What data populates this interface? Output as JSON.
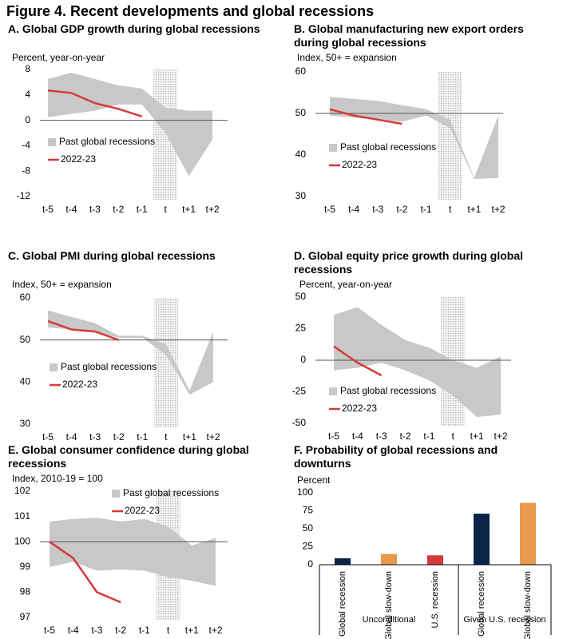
{
  "title": "Figure 4. Recent developments and global recessions",
  "chart_data": [
    {
      "type": "band-line",
      "title": "A. Global GDP growth during global recessions",
      "ylabel": "Percent, year-on-year",
      "categories": [
        "t-5",
        "t-4",
        "t-3",
        "t-2",
        "t-1",
        "t",
        "t+1",
        "t+2"
      ],
      "highlight": "t",
      "reference_line": 0,
      "ylim": [
        -12,
        8
      ],
      "yticks": [
        -12,
        -8,
        -4,
        0,
        4,
        8
      ],
      "series": [
        {
          "name": "Past global recessions",
          "color": "#c8c8c8",
          "upper": [
            6.5,
            7.5,
            6.5,
            5.5,
            5,
            2,
            1.5,
            1.5
          ],
          "lower": [
            0.5,
            1,
            1.5,
            2.5,
            2.5,
            -2,
            -8.8,
            -3
          ]
        },
        {
          "name": "2022-23",
          "color": "#d6393b",
          "values": [
            4.7,
            4.3,
            2.7,
            1.8,
            0.6,
            null,
            null,
            null
          ]
        }
      ]
    },
    {
      "type": "band-line",
      "title": "B. Global manufacturing new export orders during global recessions",
      "ylabel": "Index, 50+ = expansion",
      "categories": [
        "t-5",
        "t-4",
        "t-3",
        "t-2",
        "t-1",
        "t",
        "t+1",
        "t+2"
      ],
      "highlight": "t",
      "reference_line": 50,
      "ylim": [
        30,
        60
      ],
      "yticks": [
        30,
        40,
        50,
        60
      ],
      "series": [
        {
          "name": "Past global recessions",
          "color": "#c8c8c8",
          "upper": [
            54,
            53.5,
            53,
            52,
            51,
            48.5,
            34.5,
            49.5
          ],
          "lower": [
            49.5,
            49,
            48.5,
            48,
            49.5,
            46.5,
            34.2,
            34.5
          ]
        },
        {
          "name": "2022-23",
          "color": "#d6393b",
          "values": [
            51,
            49.5,
            48.5,
            47.5,
            null,
            null,
            null,
            null
          ]
        }
      ]
    },
    {
      "type": "band-line",
      "title": "C. Global PMI during global recessions",
      "ylabel": "Index, 50+ = expansion",
      "categories": [
        "t-5",
        "t-4",
        "t-3",
        "t-2",
        "t-1",
        "t",
        "t+1",
        "t+2"
      ],
      "highlight": "t",
      "reference_line": 50,
      "ylim": [
        30,
        60
      ],
      "yticks": [
        30,
        40,
        50,
        60
      ],
      "series": [
        {
          "name": "Past global recessions",
          "color": "#c8c8c8",
          "upper": [
            57,
            55.5,
            54,
            51,
            51,
            49,
            38,
            52
          ],
          "lower": [
            53,
            52.5,
            52,
            50.5,
            50.5,
            46.5,
            37,
            40
          ]
        },
        {
          "name": "2022-23",
          "color": "#d6393b",
          "values": [
            54.5,
            52.5,
            52,
            50,
            null,
            null,
            null,
            null
          ]
        }
      ]
    },
    {
      "type": "band-line",
      "title": "D. Global equity price growth during global recessions",
      "ylabel": "Percent, year-on-year",
      "categories": [
        "t-5",
        "t-4",
        "t-3",
        "t-2",
        "t-1",
        "t",
        "t+1",
        "t+2"
      ],
      "highlight": "t",
      "reference_line": 0,
      "ylim": [
        -50,
        50
      ],
      "yticks": [
        -50,
        -25,
        0,
        25,
        50
      ],
      "series": [
        {
          "name": "Past global recessions",
          "color": "#c8c8c8",
          "upper": [
            36,
            42,
            28,
            16,
            10,
            0,
            -6,
            3
          ],
          "lower": [
            -8,
            -6,
            -2,
            -8,
            -16,
            -28,
            -45,
            -43
          ]
        },
        {
          "name": "2022-23",
          "color": "#d6393b",
          "values": [
            11,
            -2,
            -12,
            null,
            null,
            null,
            null,
            null
          ]
        }
      ]
    },
    {
      "type": "band-line",
      "title": "E. Global consumer confidence during global recessions",
      "ylabel": "Index, 2010-19 = 100",
      "categories": [
        "t-5",
        "t-4",
        "t-3",
        "t-2",
        "t-1",
        "t",
        "t+1",
        "t+2"
      ],
      "highlight": "t",
      "reference_line": 100,
      "ylim": [
        97,
        102
      ],
      "yticks": [
        97,
        98,
        99,
        100,
        101,
        102
      ],
      "series": [
        {
          "name": "Past global recessions",
          "color": "#c8c8c8",
          "upper": [
            100.8,
            100.9,
            100.95,
            100.8,
            100.9,
            100.6,
            99.85,
            100.15
          ],
          "lower": [
            99,
            99.2,
            98.85,
            98.9,
            98.85,
            98.6,
            98.45,
            98.25
          ]
        },
        {
          "name": "2022-23",
          "color": "#d6393b",
          "values": [
            100,
            99.35,
            98,
            97.6,
            null,
            null,
            null,
            null
          ]
        }
      ]
    },
    {
      "type": "bar",
      "title": "F. Probability of global recessions and downturns",
      "ylabel": "Percent",
      "categories": [
        "Global recession",
        "Global slow-down",
        "U.S. recession",
        "Global recession",
        "Global slow-down"
      ],
      "values": [
        9,
        15,
        13,
        71,
        86
      ],
      "colors": [
        "#0b2346",
        "#e8994a",
        "#d6393b",
        "#0b2346",
        "#e8994a"
      ],
      "groups": [
        {
          "label": "Unconditional",
          "size": 3
        },
        {
          "label": "Given U.S. recession",
          "size": 2
        }
      ],
      "ylim": [
        0,
        100
      ],
      "yticks": [
        0,
        25,
        50,
        75,
        100
      ]
    }
  ]
}
